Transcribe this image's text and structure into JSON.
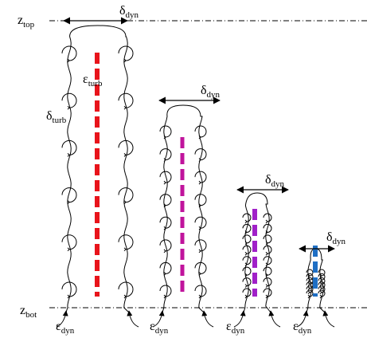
{
  "z_top": {
    "symbol": "z",
    "subscript": "top"
  },
  "z_bot": {
    "symbol": "z",
    "subscript": "bot"
  },
  "eps_turb": {
    "symbol": "ε",
    "subscript": "turb"
  },
  "delta_turb": {
    "symbol": "δ",
    "subscript": "turb"
  },
  "plumes": [
    {
      "delta_dyn": {
        "symbol": "δ",
        "subscript": "dyn"
      },
      "eps_dyn": {
        "symbol": "ε",
        "subscript": "dyn"
      }
    },
    {
      "delta_dyn": {
        "symbol": "δ",
        "subscript": "dyn"
      },
      "eps_dyn": {
        "symbol": "ε",
        "subscript": "dyn"
      }
    },
    {
      "delta_dyn": {
        "symbol": "δ",
        "subscript": "dyn"
      },
      "eps_dyn": {
        "symbol": "ε",
        "subscript": "dyn"
      }
    },
    {
      "delta_dyn": {
        "symbol": "δ",
        "subscript": "dyn"
      },
      "eps_dyn": {
        "symbol": "ε",
        "subscript": "dyn"
      }
    }
  ]
}
